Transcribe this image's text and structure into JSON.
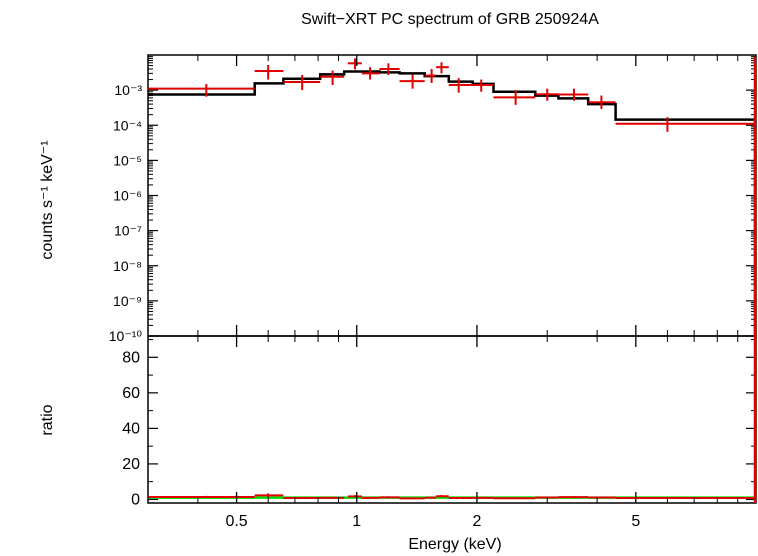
{
  "title": "Swift−XRT PC spectrum of GRB 250924A",
  "colors": {
    "data": "#e00000",
    "model": "#000000",
    "unity": "#00dd00",
    "axis": "#000000"
  },
  "chart_data": [
    {
      "type": "line",
      "panel": "spectrum",
      "ylabel": "counts s⁻¹ keV⁻¹",
      "yscale": "log",
      "xscale": "log",
      "xlim": [
        0.3,
        10
      ],
      "ylim": [
        1e-10,
        0.01
      ],
      "yticks": [
        {
          "value": 0.001,
          "label": "10⁻³"
        },
        {
          "value": 0.0001,
          "label": "10⁻⁴"
        },
        {
          "value": 1e-05,
          "label": "10⁻⁵"
        },
        {
          "value": 1e-06,
          "label": "10⁻⁶"
        },
        {
          "value": 1e-07,
          "label": "10⁻⁷"
        },
        {
          "value": 1e-08,
          "label": "10⁻⁸"
        },
        {
          "value": 1e-09,
          "label": "10⁻⁹"
        },
        {
          "value": 1e-10,
          "label": "10⁻¹⁰"
        }
      ],
      "data_points": [
        {
          "x": 0.42,
          "xlo": 0.3,
          "xhi": 0.555,
          "y": 0.0011,
          "ylo": 0.00065,
          "yhi": 0.0015
        },
        {
          "x": 0.6,
          "xlo": 0.555,
          "xhi": 0.655,
          "y": 0.0035,
          "ylo": 0.002,
          "yhi": 0.0052
        },
        {
          "x": 0.73,
          "xlo": 0.655,
          "xhi": 0.81,
          "y": 0.0017,
          "ylo": 0.001,
          "yhi": 0.0027
        },
        {
          "x": 0.87,
          "xlo": 0.81,
          "xhi": 0.93,
          "y": 0.0024,
          "ylo": 0.0014,
          "yhi": 0.0036
        },
        {
          "x": 0.99,
          "xlo": 0.95,
          "xhi": 1.03,
          "y": 0.0058,
          "ylo": 0.0039,
          "yhi": 0.008
        },
        {
          "x": 1.08,
          "xlo": 1.03,
          "xhi": 1.14,
          "y": 0.003,
          "ylo": 0.002,
          "yhi": 0.0045
        },
        {
          "x": 1.2,
          "xlo": 1.14,
          "xhi": 1.28,
          "y": 0.004,
          "ylo": 0.0027,
          "yhi": 0.0058
        },
        {
          "x": 1.38,
          "xlo": 1.28,
          "xhi": 1.48,
          "y": 0.0018,
          "ylo": 0.0011,
          "yhi": 0.0028
        },
        {
          "x": 1.54,
          "xlo": 1.48,
          "xhi": 1.58,
          "y": 0.0026,
          "ylo": 0.0016,
          "yhi": 0.004
        },
        {
          "x": 1.63,
          "xlo": 1.58,
          "xhi": 1.7,
          "y": 0.0045,
          "ylo": 0.003,
          "yhi": 0.0062
        },
        {
          "x": 1.8,
          "xlo": 1.7,
          "xhi": 1.95,
          "y": 0.0014,
          "ylo": 0.00085,
          "yhi": 0.0022
        },
        {
          "x": 2.05,
          "xlo": 1.95,
          "xhi": 2.2,
          "y": 0.0014,
          "ylo": 0.0009,
          "yhi": 0.002
        },
        {
          "x": 2.5,
          "xlo": 2.2,
          "xhi": 2.8,
          "y": 0.00062,
          "ylo": 0.00038,
          "yhi": 0.001
        },
        {
          "x": 3.0,
          "xlo": 2.8,
          "xhi": 3.2,
          "y": 0.00076,
          "ylo": 0.0005,
          "yhi": 0.0011
        },
        {
          "x": 3.5,
          "xlo": 3.2,
          "xhi": 3.8,
          "y": 0.00075,
          "ylo": 0.0005,
          "yhi": 0.0011
        },
        {
          "x": 4.1,
          "xlo": 3.8,
          "xhi": 4.45,
          "y": 0.00045,
          "ylo": 0.00029,
          "yhi": 0.0007
        },
        {
          "x": 6.0,
          "xlo": 4.45,
          "xhi": 9.95,
          "y": 0.00011,
          "ylo": 6.5e-05,
          "yhi": 0.00017
        }
      ],
      "model_steps": [
        {
          "xlo": 0.3,
          "xhi": 0.555,
          "y": 0.00075
        },
        {
          "xlo": 0.555,
          "xhi": 0.655,
          "y": 0.00155
        },
        {
          "xlo": 0.655,
          "xhi": 0.81,
          "y": 0.0021
        },
        {
          "xlo": 0.81,
          "xhi": 0.93,
          "y": 0.0028
        },
        {
          "xlo": 0.93,
          "xhi": 1.14,
          "y": 0.0034
        },
        {
          "xlo": 1.14,
          "xhi": 1.28,
          "y": 0.0032
        },
        {
          "xlo": 1.28,
          "xhi": 1.48,
          "y": 0.003
        },
        {
          "xlo": 1.48,
          "xhi": 1.7,
          "y": 0.0025
        },
        {
          "xlo": 1.7,
          "xhi": 1.95,
          "y": 0.00175
        },
        {
          "xlo": 1.95,
          "xhi": 2.2,
          "y": 0.0015
        },
        {
          "xlo": 2.2,
          "xhi": 2.8,
          "y": 0.0009
        },
        {
          "xlo": 2.8,
          "xhi": 3.2,
          "y": 0.0007
        },
        {
          "xlo": 3.2,
          "xhi": 3.8,
          "y": 0.00058
        },
        {
          "xlo": 3.8,
          "xhi": 4.45,
          "y": 0.0004
        },
        {
          "xlo": 4.45,
          "xhi": 9.95,
          "y": 0.000145
        }
      ]
    },
    {
      "type": "line",
      "panel": "ratio",
      "ylabel": "ratio",
      "xlabel": "Energy (keV)",
      "xscale": "log",
      "xlim": [
        0.3,
        10
      ],
      "ylim": [
        -2,
        92
      ],
      "yticks": [
        {
          "value": 0,
          "label": "0"
        },
        {
          "value": 20,
          "label": "20"
        },
        {
          "value": 40,
          "label": "40"
        },
        {
          "value": 60,
          "label": "60"
        },
        {
          "value": 80,
          "label": "80"
        }
      ],
      "xticks": [
        {
          "value": 0.5,
          "label": "0.5"
        },
        {
          "value": 1,
          "label": "1"
        },
        {
          "value": 2,
          "label": "2"
        },
        {
          "value": 5,
          "label": "5"
        }
      ],
      "unity_line": 1,
      "data_points": [
        {
          "x": 0.42,
          "xlo": 0.3,
          "xhi": 0.555,
          "y": 1.4,
          "ylo": 0.9,
          "yhi": 2.0
        },
        {
          "x": 0.6,
          "xlo": 0.555,
          "xhi": 0.655,
          "y": 2.3,
          "ylo": 1.3,
          "yhi": 3.4
        },
        {
          "x": 0.73,
          "xlo": 0.655,
          "xhi": 0.81,
          "y": 0.8,
          "ylo": 0.5,
          "yhi": 1.3
        },
        {
          "x": 0.87,
          "xlo": 0.81,
          "xhi": 0.93,
          "y": 0.9,
          "ylo": 0.5,
          "yhi": 1.3
        },
        {
          "x": 0.99,
          "xlo": 0.95,
          "xhi": 1.03,
          "y": 1.7,
          "ylo": 1.1,
          "yhi": 2.4
        },
        {
          "x": 1.08,
          "xlo": 1.03,
          "xhi": 1.14,
          "y": 0.9,
          "ylo": 0.6,
          "yhi": 1.3
        },
        {
          "x": 1.2,
          "xlo": 1.14,
          "xhi": 1.28,
          "y": 1.2,
          "ylo": 0.8,
          "yhi": 1.8
        },
        {
          "x": 1.38,
          "xlo": 1.28,
          "xhi": 1.48,
          "y": 0.6,
          "ylo": 0.4,
          "yhi": 0.9
        },
        {
          "x": 1.54,
          "xlo": 1.48,
          "xhi": 1.58,
          "y": 1.0,
          "ylo": 0.6,
          "yhi": 1.6
        },
        {
          "x": 1.63,
          "xlo": 1.58,
          "xhi": 1.7,
          "y": 1.8,
          "ylo": 1.2,
          "yhi": 2.5
        },
        {
          "x": 1.8,
          "xlo": 1.7,
          "xhi": 1.95,
          "y": 0.8,
          "ylo": 0.5,
          "yhi": 1.3
        },
        {
          "x": 2.05,
          "xlo": 1.95,
          "xhi": 2.2,
          "y": 0.9,
          "ylo": 0.6,
          "yhi": 1.3
        },
        {
          "x": 2.5,
          "xlo": 2.2,
          "xhi": 2.8,
          "y": 0.7,
          "ylo": 0.4,
          "yhi": 1.1
        },
        {
          "x": 3.0,
          "xlo": 2.8,
          "xhi": 3.2,
          "y": 1.1,
          "ylo": 0.7,
          "yhi": 1.6
        },
        {
          "x": 3.5,
          "xlo": 3.2,
          "xhi": 3.8,
          "y": 1.3,
          "ylo": 0.9,
          "yhi": 1.9
        },
        {
          "x": 4.1,
          "xlo": 3.8,
          "xhi": 4.45,
          "y": 1.1,
          "ylo": 0.7,
          "yhi": 1.7
        },
        {
          "x": 6.0,
          "xlo": 4.45,
          "xhi": 9.95,
          "y": 0.8,
          "ylo": 0.4,
          "yhi": 1.2
        }
      ]
    }
  ]
}
